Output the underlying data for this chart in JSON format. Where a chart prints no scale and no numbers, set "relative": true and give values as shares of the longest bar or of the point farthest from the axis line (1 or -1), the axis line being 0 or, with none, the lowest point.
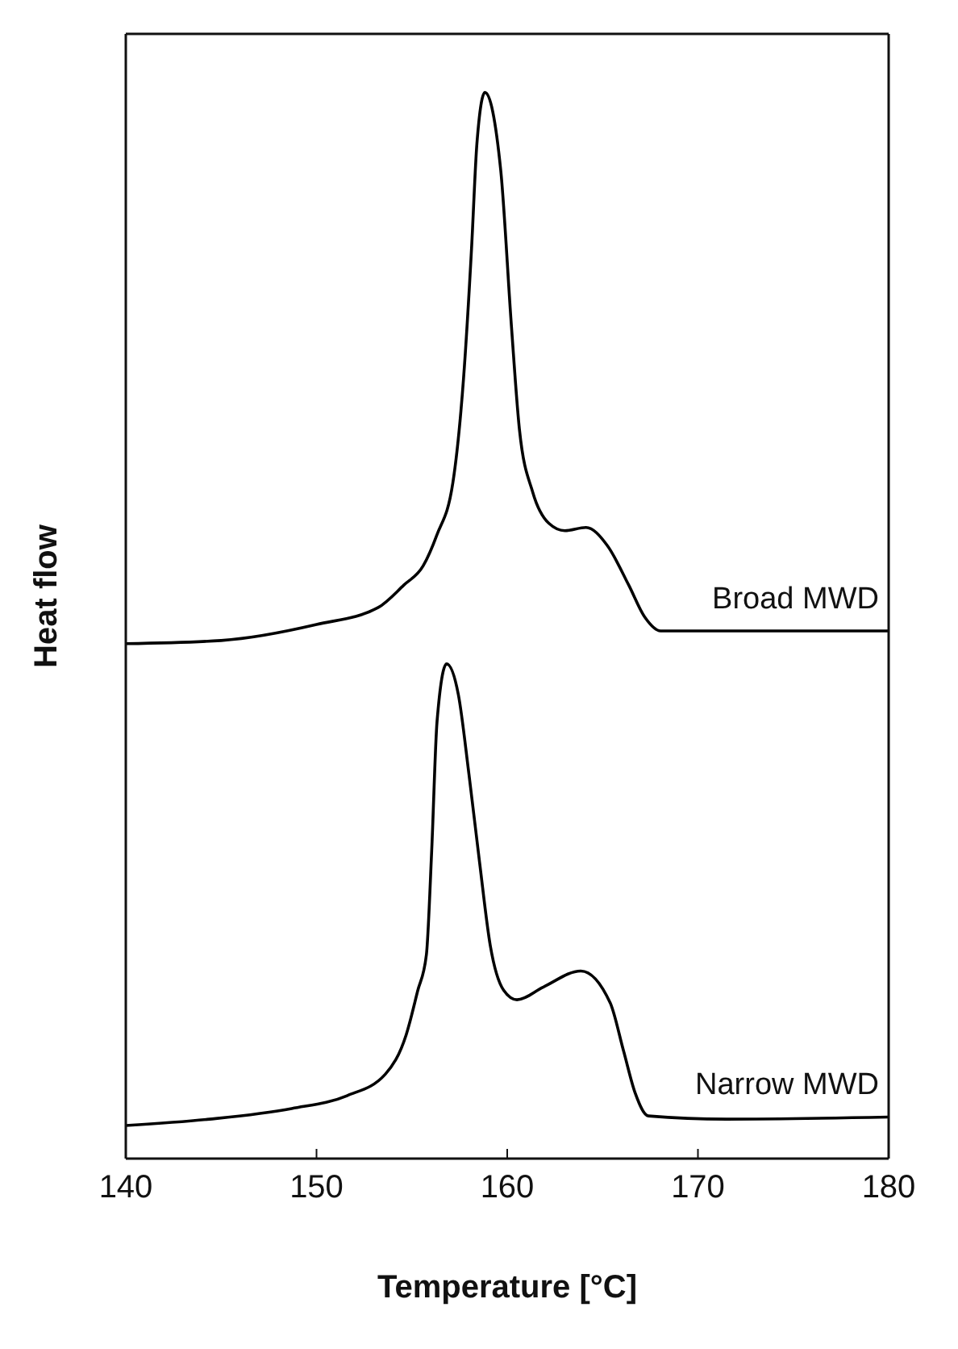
{
  "chart_data": {
    "type": "line",
    "relative": true,
    "xlabel": "Temperature [°C]",
    "ylabel": "Heat flow",
    "xlim": [
      140,
      180
    ],
    "xticks": [
      140,
      150,
      160,
      170,
      180
    ],
    "marker": "none",
    "line_style": "solid",
    "series": [
      {
        "name": "Broad MWD",
        "color": "#000000",
        "x": [
          140,
          145,
          150,
          153.24,
          154.58,
          155.59,
          156.31,
          157.15,
          157.71,
          158.13,
          158.41,
          158.83,
          159.66,
          160.22,
          160.64,
          161.34,
          162.18,
          163.02,
          164.13,
          165.25,
          166.37,
          167.21,
          168.04,
          168.88,
          180
        ],
        "values": [
          0.483,
          0.486,
          0.501,
          0.517,
          0.538,
          0.556,
          0.585,
          0.634,
          0.732,
          0.854,
          0.952,
          1,
          0.927,
          0.781,
          0.684,
          0.625,
          0.596,
          0.589,
          0.592,
          0.575,
          0.538,
          0.508,
          0.495,
          0.495,
          0.495
        ]
      },
      {
        "name": "Narrow MWD",
        "color": "#000000",
        "x": [
          140,
          144.4,
          148.7,
          151.6,
          153.6,
          154.7,
          155.3,
          155.76,
          156.04,
          156.32,
          156.82,
          157.44,
          157.99,
          158.55,
          159.11,
          159.81,
          160.51,
          161.9,
          163.86,
          165.4,
          166.1,
          166.7,
          167.4,
          171.5,
          180
        ],
        "values": [
          0.031,
          0.037,
          0.047,
          0.059,
          0.079,
          0.116,
          0.157,
          0.191,
          0.289,
          0.41,
          0.464,
          0.435,
          0.361,
          0.278,
          0.2,
          0.158,
          0.149,
          0.161,
          0.176,
          0.146,
          0.101,
          0.062,
          0.04,
          0.037,
          0.039
        ]
      }
    ]
  }
}
